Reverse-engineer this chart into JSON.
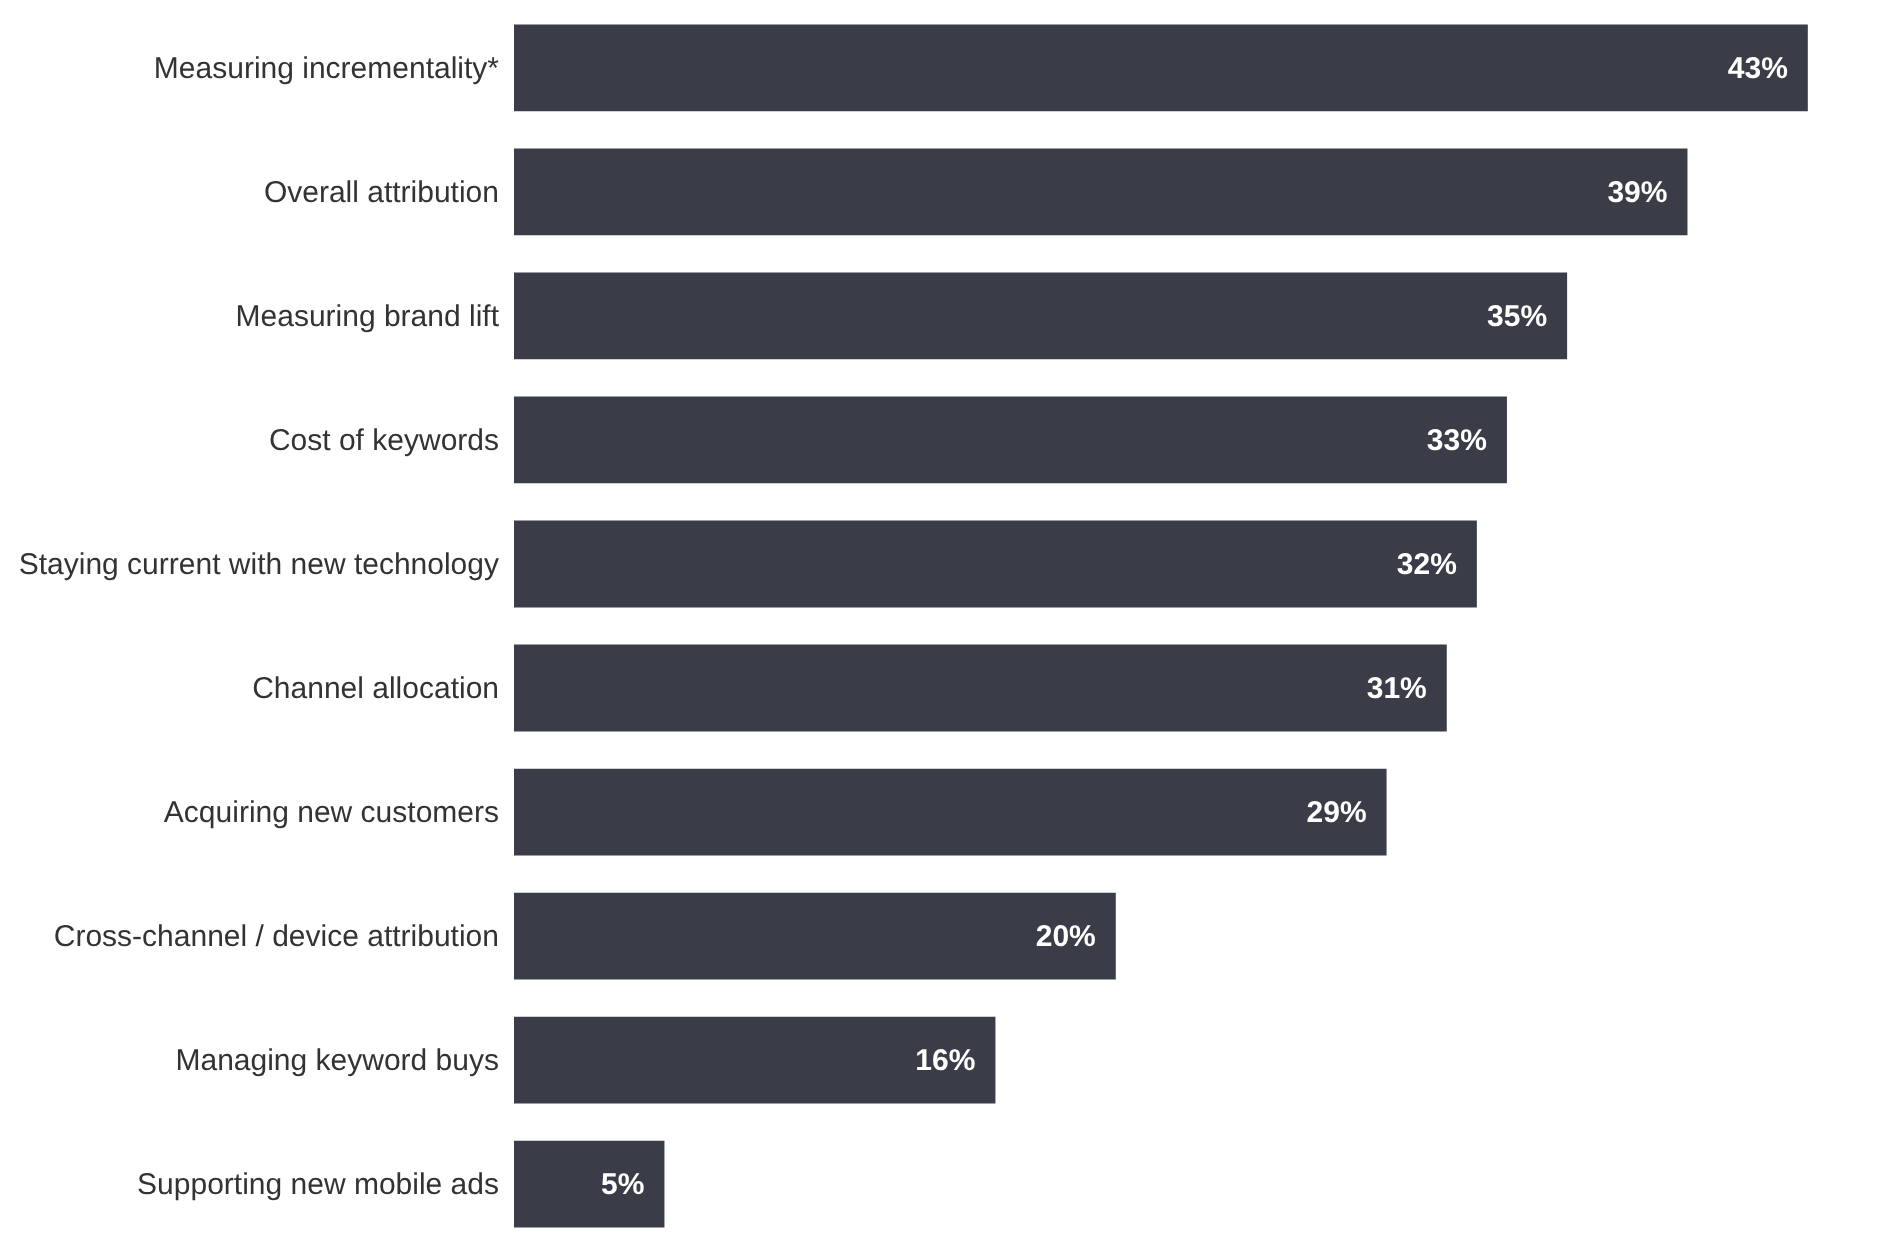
{
  "chart_data": {
    "type": "bar",
    "orientation": "horizontal",
    "categories": [
      "Measuring incrementality*",
      "Overall attribution",
      "Measuring brand lift",
      "Cost of keywords",
      "Staying current with new technology",
      "Channel allocation",
      "Acquiring new customers",
      "Cross-channel / device attribution",
      "Managing keyword buys",
      "Supporting new mobile ads"
    ],
    "values": [
      43,
      39,
      35,
      33,
      32,
      31,
      29,
      20,
      16,
      5
    ],
    "value_labels": [
      "43%",
      "39%",
      "35%",
      "33%",
      "32%",
      "31%",
      "29%",
      "20%",
      "16%",
      "5%"
    ],
    "color": "#3a3d48"
  }
}
